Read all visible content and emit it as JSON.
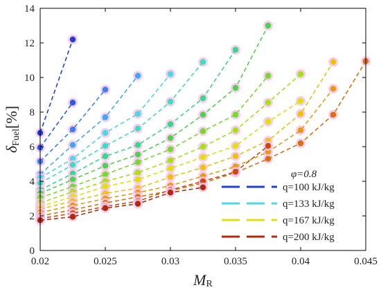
{
  "chart_data": {
    "type": "line",
    "xlabel": "M",
    "xlabel_sub": "R",
    "ylabel": "δ",
    "ylabel_sub": "Fuel",
    "ylabel_unit": "[%]",
    "xlim": [
      0.02,
      0.045
    ],
    "ylim": [
      0,
      14
    ],
    "xticks": [
      "0.02",
      "0.025",
      "0.03",
      "0.035",
      "0.04",
      "0.045"
    ],
    "yticks": [
      "0",
      "2",
      "4",
      "6",
      "8",
      "10",
      "12",
      "14"
    ],
    "grid": false,
    "legend_position": "bottom-right",
    "legend_title": "φ=0.8",
    "legend_entries": [
      {
        "label": "q=100 kJ/kg",
        "color": "#1f3fd6"
      },
      {
        "label": "q=133 kJ/kg",
        "color": "#4cd6e6"
      },
      {
        "label": "q=167 kJ/kg",
        "color": "#e0e010"
      },
      {
        "label": "q=200 kJ/kg",
        "color": "#b02a0a"
      }
    ],
    "series": [
      {
        "color": "#1f3fd6",
        "x": [
          0.02,
          0.0225
        ],
        "y": [
          6.8,
          12.2
        ]
      },
      {
        "color": "#2a5ae6",
        "x": [
          0.02,
          0.0225
        ],
        "y": [
          5.95,
          8.55
        ]
      },
      {
        "color": "#3a80f0",
        "x": [
          0.02,
          0.0225,
          0.025
        ],
        "y": [
          5.15,
          7.0,
          9.3
        ]
      },
      {
        "color": "#40a8f0",
        "x": [
          0.02,
          0.0225,
          0.025,
          0.0275
        ],
        "y": [
          4.4,
          6.1,
          7.7,
          10.1
        ]
      },
      {
        "color": "#4cd6e6",
        "x": [
          0.02,
          0.0225,
          0.025,
          0.0275,
          0.03
        ],
        "y": [
          4.2,
          5.3,
          6.8,
          7.9,
          10.2
        ]
      },
      {
        "color": "#40dcc0",
        "x": [
          0.02,
          0.0225,
          0.025,
          0.0275,
          0.03,
          0.0325
        ],
        "y": [
          3.9,
          4.95,
          6.05,
          7.05,
          8.6,
          10.9
        ]
      },
      {
        "color": "#3ad690",
        "x": [
          0.02,
          0.0225,
          0.025,
          0.0275,
          0.03,
          0.0325,
          0.035
        ],
        "y": [
          3.5,
          4.45,
          5.45,
          6.1,
          7.3,
          8.8,
          11.6
        ]
      },
      {
        "color": "#50d050",
        "x": [
          0.02,
          0.0225,
          0.025,
          0.0275,
          0.03,
          0.0325,
          0.035,
          0.0375
        ],
        "y": [
          3.3,
          4.1,
          4.9,
          5.55,
          6.5,
          7.85,
          9.4,
          13.0
        ]
      },
      {
        "color": "#78d830",
        "x": [
          0.02,
          0.0225,
          0.025,
          0.0275,
          0.03,
          0.0325,
          0.035,
          0.0375
        ],
        "y": [
          3.05,
          3.7,
          4.4,
          5.1,
          5.85,
          6.9,
          7.85,
          10.1
        ]
      },
      {
        "color": "#a8e018",
        "x": [
          0.02,
          0.0225,
          0.025,
          0.0275,
          0.03,
          0.0325,
          0.035,
          0.0375,
          0.04
        ],
        "y": [
          2.75,
          3.4,
          4.0,
          4.5,
          5.2,
          6.0,
          6.95,
          8.55,
          10.2
        ]
      },
      {
        "color": "#e0e010",
        "x": [
          0.02,
          0.0225,
          0.025,
          0.0275,
          0.03,
          0.0325,
          0.035,
          0.0375,
          0.04
        ],
        "y": [
          2.55,
          3.1,
          3.7,
          4.1,
          4.75,
          5.4,
          6.05,
          7.45,
          8.65
        ]
      },
      {
        "color": "#f0c010",
        "x": [
          0.02,
          0.0225,
          0.025,
          0.0275,
          0.03,
          0.0325,
          0.035,
          0.0375,
          0.04,
          0.0425
        ],
        "y": [
          2.4,
          2.85,
          3.3,
          3.6,
          4.25,
          4.8,
          5.45,
          6.35,
          7.9,
          10.9
        ]
      },
      {
        "color": "#e89a10",
        "x": [
          0.02,
          0.0225,
          0.025,
          0.0275,
          0.03,
          0.0325,
          0.035,
          0.0375,
          0.04,
          0.0425
        ],
        "y": [
          2.2,
          2.6,
          3.0,
          3.35,
          3.75,
          4.3,
          4.85,
          5.7,
          6.95,
          9.35
        ]
      },
      {
        "color": "#d87010",
        "x": [
          0.02,
          0.0225,
          0.025,
          0.0275,
          0.03,
          0.0325,
          0.035,
          0.0375,
          0.04,
          0.0425,
          0.045
        ],
        "y": [
          2.0,
          2.35,
          2.75,
          3.1,
          3.45,
          3.9,
          4.5,
          5.3,
          6.2,
          7.85,
          10.95
        ]
      },
      {
        "color": "#c84a10",
        "x": [
          0.02,
          0.0225,
          0.025,
          0.0275,
          0.03,
          0.0325,
          0.035,
          0.0375
        ],
        "y": [
          1.85,
          2.15,
          2.55,
          2.85,
          3.5,
          4.0,
          4.55,
          6.05
        ]
      },
      {
        "color": "#b02a0a",
        "x": [
          0.02,
          0.0225,
          0.025,
          0.0275,
          0.03,
          0.0325
        ],
        "y": [
          1.75,
          1.95,
          2.45,
          2.7,
          3.35,
          3.65
        ]
      }
    ]
  }
}
